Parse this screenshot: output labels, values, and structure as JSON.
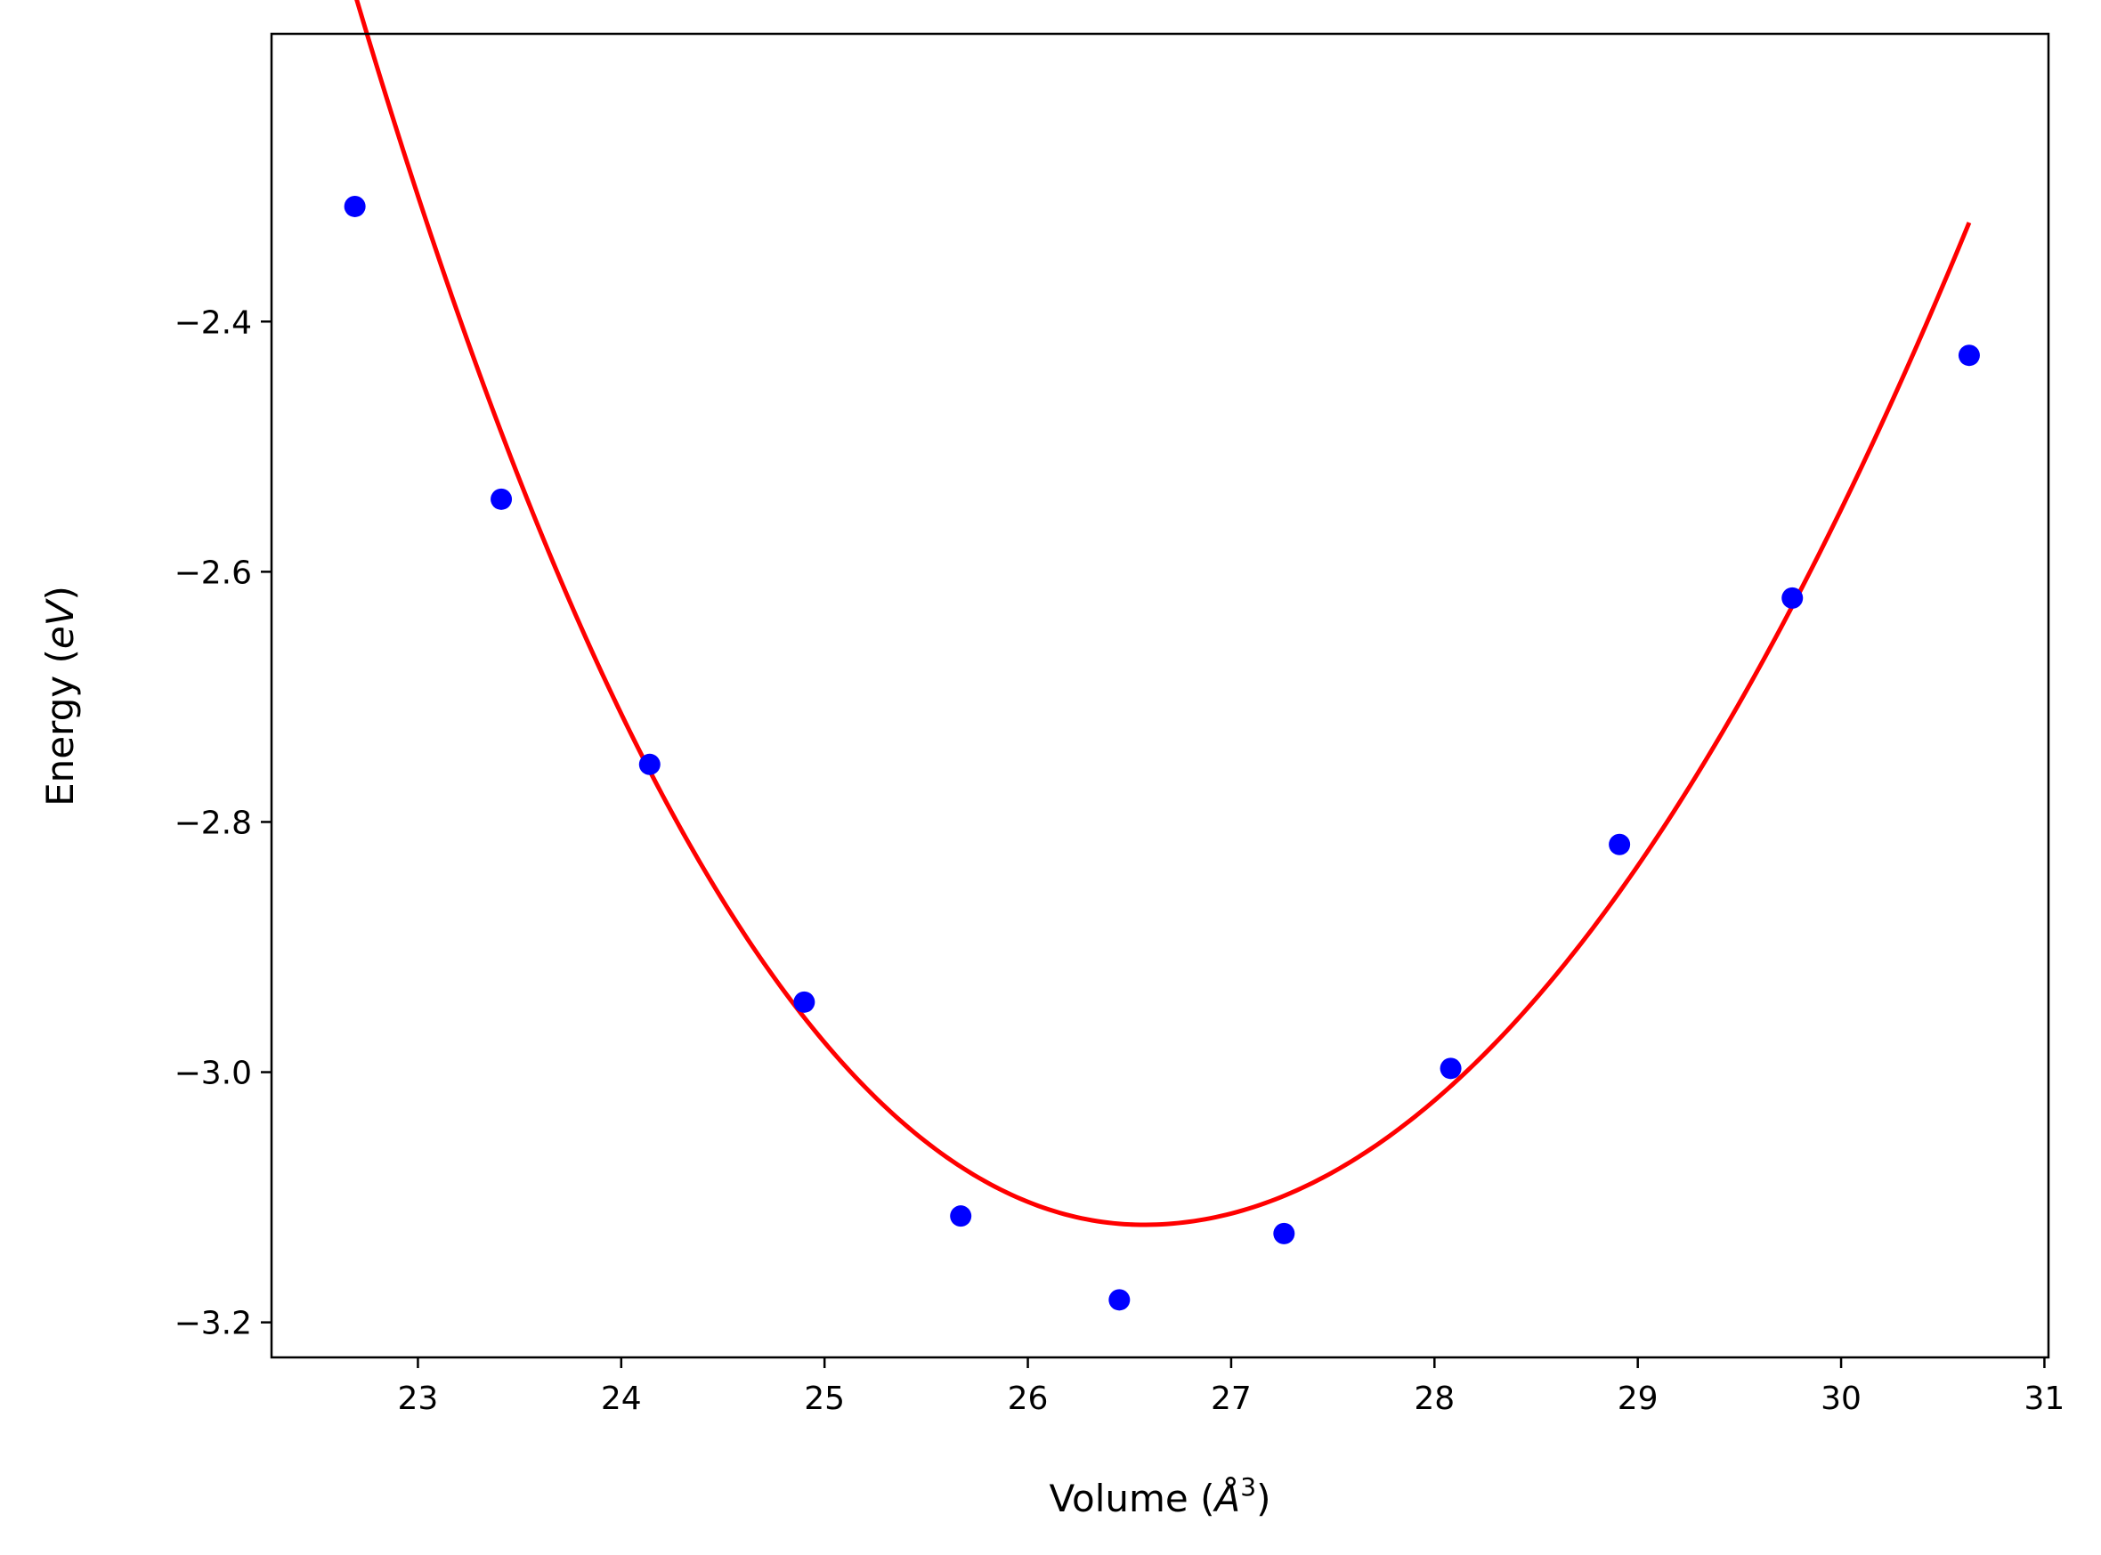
{
  "chart_data": {
    "type": "scatter",
    "xlabel": "Volume (Å³)",
    "ylabel": "Energy (eV)",
    "xlabel_parts": {
      "prefix": "Volume (",
      "var": "Å",
      "sup": "3",
      "suffix": ")"
    },
    "ylabel_parts": {
      "prefix": "Energy (",
      "var": "eV",
      "suffix": ")"
    },
    "xlim": [
      22.28,
      31.02
    ],
    "ylim": [
      -3.228,
      -2.17
    ],
    "xticks": [
      {
        "value": 23,
        "label": "23"
      },
      {
        "value": 24,
        "label": "24"
      },
      {
        "value": 25,
        "label": "25"
      },
      {
        "value": 26,
        "label": "26"
      },
      {
        "value": 27,
        "label": "27"
      },
      {
        "value": 28,
        "label": "28"
      },
      {
        "value": 29,
        "label": "29"
      },
      {
        "value": 30,
        "label": "30"
      },
      {
        "value": 31,
        "label": "31"
      }
    ],
    "yticks": [
      {
        "value": -2.4,
        "label": "−2.4"
      },
      {
        "value": -2.6,
        "label": "−2.6"
      },
      {
        "value": -2.8,
        "label": "−2.8"
      },
      {
        "value": -3.0,
        "label": "−3.0"
      },
      {
        "value": -3.2,
        "label": "−3.2"
      }
    ],
    "grid": false,
    "series": [
      {
        "kind": "scatter",
        "color": "#0000ff",
        "points": [
          {
            "x": 22.69,
            "y": -2.308
          },
          {
            "x": 23.41,
            "y": -2.542
          },
          {
            "x": 24.14,
            "y": -2.754
          },
          {
            "x": 24.9,
            "y": -2.944
          },
          {
            "x": 25.67,
            "y": -3.115
          },
          {
            "x": 26.45,
            "y": -3.182
          },
          {
            "x": 27.26,
            "y": -3.129
          },
          {
            "x": 28.08,
            "y": -2.997
          },
          {
            "x": 28.91,
            "y": -2.818
          },
          {
            "x": 29.76,
            "y": -2.621
          },
          {
            "x": 30.63,
            "y": -2.427
          }
        ]
      },
      {
        "kind": "line",
        "color": "#ff0000",
        "fit": {
          "x_min": 22.69,
          "y_min": -3.122,
          "v_min": 26.57,
          "left_curvature": 0.0549,
          "right_curvature": 0.0486,
          "left_cubic": 0.0027,
          "right_cubic": 0.0
        },
        "x_range": [
          22.69,
          30.63
        ]
      }
    ]
  }
}
